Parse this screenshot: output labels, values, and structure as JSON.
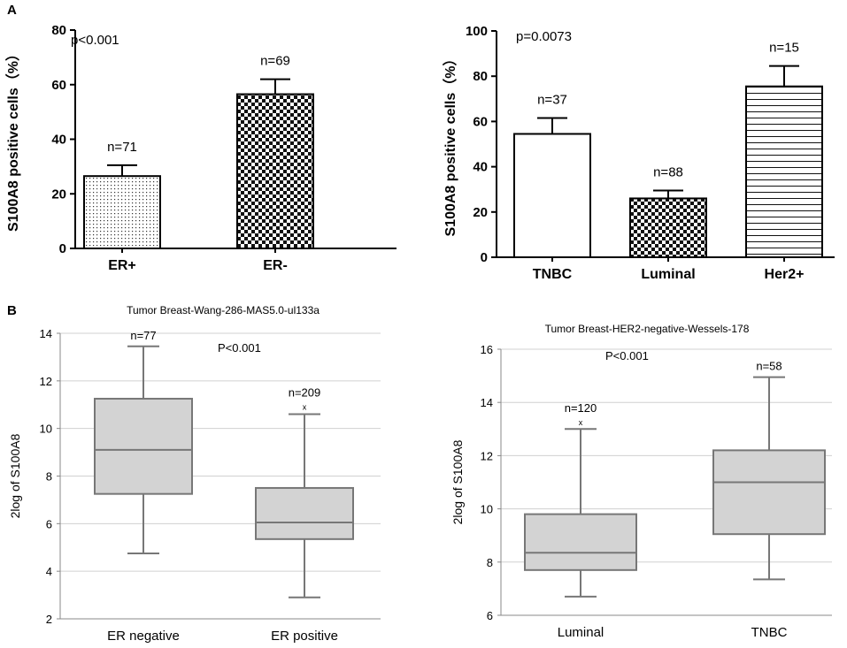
{
  "panels": {
    "a": "A",
    "b": "B"
  },
  "chart_data": [
    {
      "id": "a1",
      "type": "bar",
      "title": "",
      "ylabel": "S100A8 positive cells（%）",
      "xlabel": "",
      "ylim": [
        0,
        80
      ],
      "yticks": [
        0,
        20,
        40,
        60,
        80
      ],
      "pvalue": "p<0.001",
      "categories": [
        "ER+",
        "ER-"
      ],
      "values": [
        26.5,
        56.5
      ],
      "errors": [
        4,
        5.5
      ],
      "n_labels": [
        "n=71",
        "n=69"
      ],
      "patterns": [
        "dots",
        "checker"
      ]
    },
    {
      "id": "a2",
      "type": "bar",
      "title": "",
      "ylabel": "S100A8 positive cells（%）",
      "xlabel": "",
      "ylim": [
        0,
        100
      ],
      "yticks": [
        0,
        20,
        40,
        60,
        80,
        100
      ],
      "pvalue": "p=0.0073",
      "categories": [
        "TNBC",
        "Luminal",
        "Her2+"
      ],
      "values": [
        54.5,
        26,
        75.5
      ],
      "errors": [
        7,
        3.5,
        9
      ],
      "n_labels": [
        "n=37",
        "n=88",
        "n=15"
      ],
      "patterns": [
        "none",
        "checker",
        "hlines"
      ]
    },
    {
      "id": "b1",
      "type": "box",
      "title": "Tumor Breast-Wang-286-MAS5.0-ul133a",
      "ylabel": "2log of S100A8",
      "xlabel": "",
      "ylim": [
        2,
        14
      ],
      "yticks": [
        2,
        4,
        6,
        8,
        10,
        12,
        14
      ],
      "pvalue": "P<0.001",
      "categories": [
        "ER negative",
        "ER positive"
      ],
      "n_labels": [
        "n=77",
        "n=209"
      ],
      "boxes": [
        {
          "min": 4.75,
          "q1": 7.25,
          "median": 9.1,
          "q3": 11.25,
          "max": 13.45,
          "outliers": []
        },
        {
          "min": 2.9,
          "q1": 5.35,
          "median": 6.05,
          "q3": 7.5,
          "max": 10.6,
          "outliers": [
            10.9
          ]
        }
      ],
      "outlier_marker": "x"
    },
    {
      "id": "b2",
      "type": "box",
      "title": "Tumor Breast-HER2-negative-Wessels-178",
      "ylabel": "2log of S100A8",
      "xlabel": "",
      "ylim": [
        6,
        16
      ],
      "yticks": [
        6,
        8,
        10,
        12,
        14,
        16
      ],
      "pvalue": "P<0.001",
      "categories": [
        "Luminal",
        "TNBC"
      ],
      "n_labels": [
        "n=120",
        "n=58"
      ],
      "boxes": [
        {
          "min": 6.7,
          "q1": 7.7,
          "median": 8.35,
          "q3": 9.8,
          "max": 13.0,
          "outliers": [
            13.25
          ]
        },
        {
          "min": 7.35,
          "q1": 9.05,
          "median": 11.0,
          "q3": 12.2,
          "max": 14.95,
          "outliers": []
        }
      ],
      "outlier_marker": "x"
    }
  ]
}
